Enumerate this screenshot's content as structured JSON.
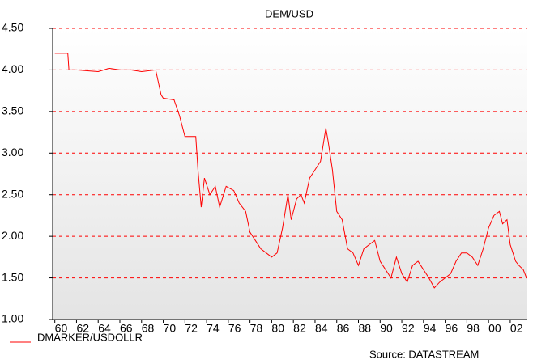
{
  "chart_data": {
    "type": "line",
    "title": "DEM/USD",
    "x": [
      1960,
      1961.2,
      1961.3,
      1962,
      1963,
      1964,
      1965,
      1966,
      1967,
      1968,
      1969.3,
      1969.8,
      1970,
      1971,
      1971.5,
      1972,
      1973,
      1973.2,
      1973.5,
      1973.8,
      1974.3,
      1974.8,
      1975.2,
      1975.8,
      1976.5,
      1977,
      1977.6,
      1978,
      1978.5,
      1979,
      1979.5,
      1980,
      1980.5,
      1981,
      1981.5,
      1981.8,
      1982.3,
      1982.7,
      1983,
      1983.5,
      1984,
      1984.5,
      1985,
      1985.2,
      1985.6,
      1986,
      1986.5,
      1987,
      1987.5,
      1988,
      1988.5,
      1989,
      1989.5,
      1990,
      1990.5,
      1991,
      1991.5,
      1992,
      1992.5,
      1993,
      1993.5,
      1994,
      1994.5,
      1995,
      1995.5,
      1996,
      1996.5,
      1997,
      1997.5,
      1998,
      1998.5,
      1999,
      1999.5,
      2000,
      2000.5,
      2001,
      2001.3,
      2001.7,
      2002,
      2002.5,
      2002.8,
      2003.2,
      2003.5
    ],
    "series": [
      {
        "name": "DMARKER/USDOLLR",
        "color": "#ff0000",
        "values": [
          4.2,
          4.2,
          4.0,
          4.0,
          3.99,
          3.98,
          4.02,
          4.0,
          4.0,
          3.98,
          4.0,
          3.7,
          3.66,
          3.64,
          3.45,
          3.2,
          3.2,
          2.8,
          2.35,
          2.7,
          2.5,
          2.6,
          2.35,
          2.6,
          2.55,
          2.4,
          2.3,
          2.05,
          1.95,
          1.85,
          1.8,
          1.75,
          1.8,
          2.1,
          2.5,
          2.2,
          2.45,
          2.5,
          2.4,
          2.7,
          2.8,
          2.9,
          3.3,
          3.15,
          2.8,
          2.3,
          2.2,
          1.85,
          1.8,
          1.65,
          1.85,
          1.9,
          1.95,
          1.7,
          1.6,
          1.5,
          1.75,
          1.55,
          1.45,
          1.65,
          1.7,
          1.6,
          1.5,
          1.38,
          1.45,
          1.5,
          1.55,
          1.7,
          1.8,
          1.8,
          1.75,
          1.65,
          1.85,
          2.1,
          2.25,
          2.3,
          2.15,
          2.2,
          1.9,
          1.7,
          1.65,
          1.6,
          1.5
        ]
      }
    ],
    "xlim": [
      1959.8,
      2003.5
    ],
    "xticks": [
      {
        "value": 1960,
        "label": "60"
      },
      {
        "value": 1962,
        "label": "62"
      },
      {
        "value": 1964,
        "label": "64"
      },
      {
        "value": 1966,
        "label": "66"
      },
      {
        "value": 1968,
        "label": "68"
      },
      {
        "value": 1970,
        "label": "70"
      },
      {
        "value": 1972,
        "label": "72"
      },
      {
        "value": 1974,
        "label": "74"
      },
      {
        "value": 1976,
        "label": "76"
      },
      {
        "value": 1978,
        "label": "78"
      },
      {
        "value": 1980,
        "label": "80"
      },
      {
        "value": 1982,
        "label": "82"
      },
      {
        "value": 1984,
        "label": "84"
      },
      {
        "value": 1986,
        "label": "86"
      },
      {
        "value": 1988,
        "label": "88"
      },
      {
        "value": 1990,
        "label": "90"
      },
      {
        "value": 1992,
        "label": "92"
      },
      {
        "value": 1994,
        "label": "94"
      },
      {
        "value": 1996,
        "label": "96"
      },
      {
        "value": 1998,
        "label": "98"
      },
      {
        "value": 2000,
        "label": "00"
      },
      {
        "value": 2002,
        "label": "02"
      }
    ],
    "ylim": [
      1,
      4.5
    ],
    "yticks": [
      {
        "value": 1,
        "label": "1.00"
      },
      {
        "value": 1.5,
        "label": "1.50"
      },
      {
        "value": 2,
        "label": "2.00"
      },
      {
        "value": 2.5,
        "label": "2.50"
      },
      {
        "value": 3,
        "label": "3.00"
      },
      {
        "value": 3.5,
        "label": "3.50"
      },
      {
        "value": 4,
        "label": "4.00"
      },
      {
        "value": 4.5,
        "label": "4.50"
      }
    ],
    "grid": true,
    "source": "Source: DATASTREAM"
  }
}
